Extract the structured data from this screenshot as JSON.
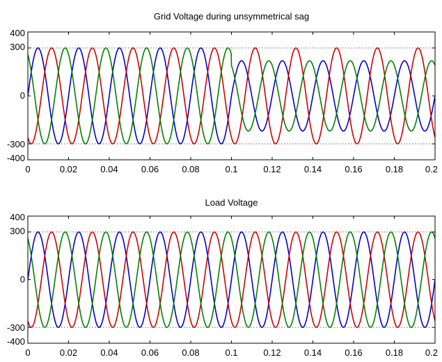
{
  "chart_data": [
    {
      "type": "line",
      "title": "Grid Voltage during unsymmetrical sag",
      "xlabel": "",
      "ylabel": "",
      "xlim": [
        0,
        0.2
      ],
      "ylim": [
        -400,
        400
      ],
      "xticks": [
        0,
        0.02,
        0.04,
        0.06,
        0.08,
        0.1,
        0.12,
        0.14,
        0.16,
        0.18,
        0.2
      ],
      "xtick_labels": [
        "0",
        "0.02",
        "0.04",
        "0.06",
        "0.08",
        "0.1",
        "0.12",
        "0.14",
        "0.16",
        "0.18",
        "0.2"
      ],
      "yticks": [
        -400,
        -300,
        0,
        300,
        400
      ],
      "ytick_labels": [
        "-400",
        "-300",
        "0",
        "300",
        "400"
      ],
      "y_gridlines": [
        -300,
        300
      ],
      "frequency_hz": 50,
      "series": [
        {
          "color": "#0000cc",
          "amplitude": 300,
          "phase_deg": 0,
          "amplitude_after_0.1": 220
        },
        {
          "color": "#cc0000",
          "amplitude": 300,
          "phase_deg": -120,
          "amplitude_after_0.1": 300
        },
        {
          "color": "#008000",
          "amplitude": 300,
          "phase_deg": 120,
          "amplitude_after_0.1": 220
        }
      ]
    },
    {
      "type": "line",
      "title": "Load Voltage",
      "xlabel": "",
      "ylabel": "",
      "xlim": [
        0,
        0.2
      ],
      "ylim": [
        -400,
        400
      ],
      "xticks": [
        0,
        0.02,
        0.04,
        0.06,
        0.08,
        0.1,
        0.12,
        0.14,
        0.16,
        0.18,
        0.2
      ],
      "xtick_labels": [
        "0",
        "0.02",
        "0.04",
        "0.06",
        "0.08",
        "0.1",
        "0.12",
        "0.14",
        "0.16",
        "0.18",
        "0.2"
      ],
      "yticks": [
        -400,
        -300,
        0,
        300,
        400
      ],
      "ytick_labels": [
        "-400",
        "-300",
        "0",
        "300",
        "400"
      ],
      "y_gridlines": [
        -300,
        300
      ],
      "frequency_hz": 50,
      "series": [
        {
          "color": "#0000cc",
          "amplitude": 300,
          "phase_deg": 0
        },
        {
          "color": "#cc0000",
          "amplitude": 300,
          "phase_deg": -120
        },
        {
          "color": "#008000",
          "amplitude": 300,
          "phase_deg": 120
        }
      ]
    }
  ]
}
